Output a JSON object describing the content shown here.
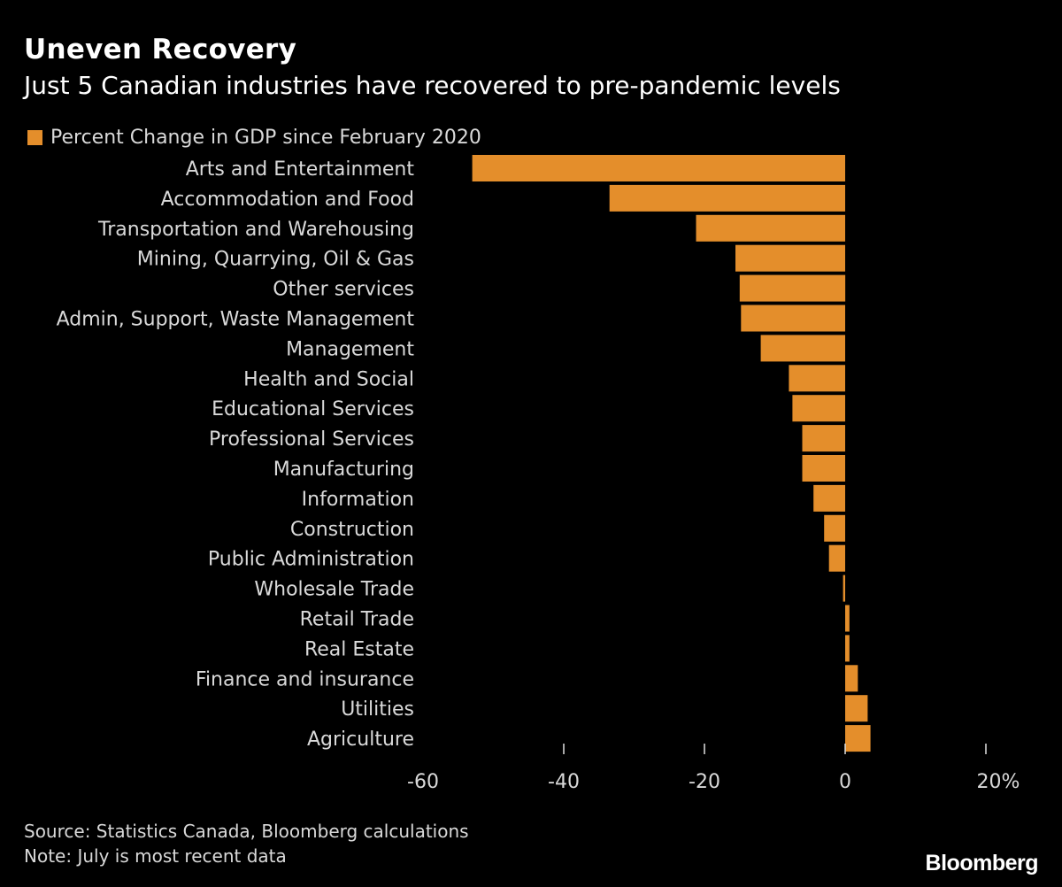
{
  "colors": {
    "bar": "#e48e2b",
    "background": "#000000",
    "text": "#ffffff",
    "muted_text": "#d9d9d9"
  },
  "chart_data": {
    "type": "bar",
    "orientation": "horizontal",
    "title": "Uneven Recovery",
    "subtitle": "Just 5 Canadian industries have recovered to pre-pandemic levels",
    "legend": [
      "Percent Change in GDP since February 2020"
    ],
    "categories": [
      "Arts and Entertainment",
      "Accommodation and Food",
      "Transportation and Warehousing",
      "Mining, Quarrying, Oil & Gas",
      "Other services",
      "Admin, Support, Waste Management",
      "Management",
      "Health and Social",
      "Educational Services",
      "Professional Services",
      "Manufacturing",
      "Information",
      "Construction",
      "Public Administration",
      "Wholesale Trade",
      "Retail Trade",
      "Real Estate",
      "Finance and insurance",
      "Utilities",
      "Agriculture"
    ],
    "series": [
      {
        "name": "Percent Change in GDP since February 2020",
        "values": [
          -53.0,
          -33.5,
          -21.2,
          -15.6,
          -15.0,
          -14.8,
          -12.0,
          -8.0,
          -7.5,
          -6.1,
          -6.1,
          -4.5,
          -3.0,
          -2.3,
          -0.3,
          0.6,
          0.6,
          1.8,
          3.2,
          3.6
        ]
      }
    ],
    "xlim": [
      -60,
      20
    ],
    "xticks": [
      -60,
      -40,
      -20,
      0,
      20
    ],
    "xtick_labels": [
      "-60",
      "-40",
      "-20",
      "0",
      "20%"
    ],
    "xlabel": "",
    "ylabel": "",
    "grid": false
  },
  "footer": {
    "source": "Source: Statistics Canada, Bloomberg calculations",
    "note": "Note: July is most recent data",
    "brand": "Bloomberg"
  }
}
